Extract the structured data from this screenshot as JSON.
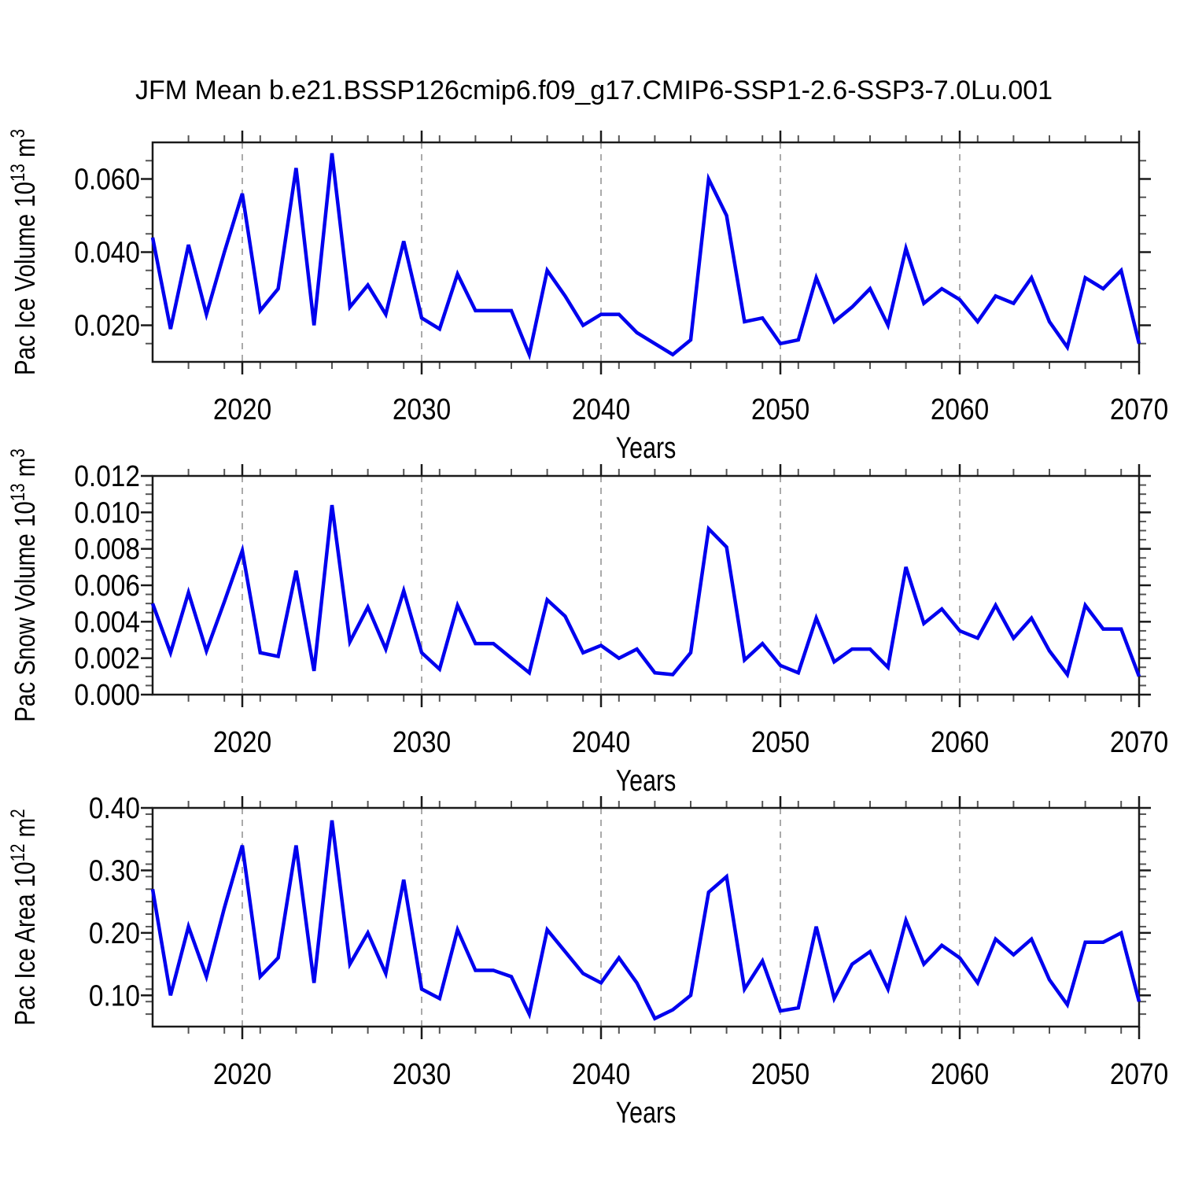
{
  "title": "JFM Mean b.e21.BSSP126cmip6.f09_g17.CMIP6-SSP1-2.6-SSP3-7.0Lu.001",
  "line_color": "#0000ee",
  "grid_color": "#aaaaaa",
  "axis_color": "#1a1a1a",
  "x_axis": {
    "label": "Years",
    "range": [
      2015,
      2070
    ],
    "tick_values": [
      2020,
      2030,
      2040,
      2050,
      2060,
      2070
    ],
    "tick_labels": [
      "2020",
      "2030",
      "2040",
      "2050",
      "2060",
      "2070"
    ],
    "minor_step": 2,
    "grid_years": [
      2020,
      2030,
      2040,
      2050,
      2060
    ]
  },
  "chart_data": [
    {
      "type": "line",
      "name": "pac-ice-volume",
      "ylabel": "Pac Ice Volume 10^13 m^3",
      "ylabel_parts": [
        {
          "t": "Pac Ice Volume 10"
        },
        {
          "t": "13",
          "sup": true
        },
        {
          "t": " m"
        },
        {
          "t": "3",
          "sup": true
        }
      ],
      "ylim": [
        0.01,
        0.07
      ],
      "ytick_values": [
        0.02,
        0.04,
        0.06
      ],
      "ytick_labels": [
        "0.020",
        "0.040",
        "0.060"
      ],
      "y_minor_step": 0.005,
      "x": [
        2015,
        2016,
        2017,
        2018,
        2019,
        2020,
        2021,
        2022,
        2023,
        2024,
        2025,
        2026,
        2027,
        2028,
        2029,
        2030,
        2031,
        2032,
        2033,
        2034,
        2035,
        2036,
        2037,
        2038,
        2039,
        2040,
        2041,
        2042,
        2043,
        2044,
        2045,
        2046,
        2047,
        2048,
        2049,
        2050,
        2051,
        2052,
        2053,
        2054,
        2055,
        2056,
        2057,
        2058,
        2059,
        2060,
        2061,
        2062,
        2063,
        2064,
        2065,
        2066,
        2067,
        2068,
        2069,
        2070
      ],
      "values": [
        0.044,
        0.019,
        0.042,
        0.023,
        0.04,
        0.056,
        0.024,
        0.03,
        0.063,
        0.02,
        0.067,
        0.025,
        0.031,
        0.023,
        0.043,
        0.022,
        0.019,
        0.034,
        0.024,
        0.024,
        0.024,
        0.012,
        0.035,
        0.028,
        0.02,
        0.023,
        0.023,
        0.018,
        0.015,
        0.012,
        0.016,
        0.06,
        0.05,
        0.021,
        0.022,
        0.015,
        0.016,
        0.033,
        0.021,
        0.025,
        0.03,
        0.02,
        0.041,
        0.026,
        0.03,
        0.027,
        0.021,
        0.028,
        0.026,
        0.033,
        0.021,
        0.014,
        0.033,
        0.03,
        0.035,
        0.015
      ]
    },
    {
      "type": "line",
      "name": "pac-snow-volume",
      "ylabel": "Pac Snow Volume 10^13 m^3",
      "ylabel_parts": [
        {
          "t": "Pac Snow Volume 10"
        },
        {
          "t": "13",
          "sup": true
        },
        {
          "t": " m"
        },
        {
          "t": "3",
          "sup": true
        }
      ],
      "ylim": [
        0.0,
        0.012
      ],
      "ytick_values": [
        0.0,
        0.002,
        0.004,
        0.006,
        0.008,
        0.01,
        0.012
      ],
      "ytick_labels": [
        "0.000",
        "0.002",
        "0.004",
        "0.006",
        "0.008",
        "0.010",
        "0.012"
      ],
      "y_minor_step": 0.0005,
      "x": [
        2015,
        2016,
        2017,
        2018,
        2019,
        2020,
        2021,
        2022,
        2023,
        2024,
        2025,
        2026,
        2027,
        2028,
        2029,
        2030,
        2031,
        2032,
        2033,
        2034,
        2035,
        2036,
        2037,
        2038,
        2039,
        2040,
        2041,
        2042,
        2043,
        2044,
        2045,
        2046,
        2047,
        2048,
        2049,
        2050,
        2051,
        2052,
        2053,
        2054,
        2055,
        2056,
        2057,
        2058,
        2059,
        2060,
        2061,
        2062,
        2063,
        2064,
        2065,
        2066,
        2067,
        2068,
        2069,
        2070
      ],
      "values": [
        0.005,
        0.0023,
        0.0056,
        0.0024,
        0.0051,
        0.0079,
        0.0023,
        0.0021,
        0.0068,
        0.0013,
        0.0104,
        0.0029,
        0.0048,
        0.0025,
        0.0057,
        0.0023,
        0.0014,
        0.0049,
        0.0028,
        0.0028,
        0.002,
        0.0012,
        0.0052,
        0.0043,
        0.0023,
        0.0027,
        0.002,
        0.0025,
        0.0012,
        0.0011,
        0.0023,
        0.0091,
        0.0081,
        0.0019,
        0.0028,
        0.0016,
        0.0012,
        0.0042,
        0.0018,
        0.0025,
        0.0025,
        0.0015,
        0.007,
        0.0039,
        0.0047,
        0.0035,
        0.0031,
        0.0049,
        0.0031,
        0.0042,
        0.0024,
        0.0011,
        0.0049,
        0.0036,
        0.0036,
        0.001
      ]
    },
    {
      "type": "line",
      "name": "pac-ice-area",
      "ylabel": "Pac Ice Area 10^12 m^2",
      "ylabel_parts": [
        {
          "t": "Pac Ice Area 10"
        },
        {
          "t": "12",
          "sup": true
        },
        {
          "t": " m"
        },
        {
          "t": "2",
          "sup": true
        }
      ],
      "ylim": [
        0.05,
        0.4
      ],
      "ytick_values": [
        0.1,
        0.2,
        0.3,
        0.4
      ],
      "ytick_labels": [
        "0.10",
        "0.20",
        "0.30",
        "0.40"
      ],
      "y_minor_step": 0.02,
      "x": [
        2015,
        2016,
        2017,
        2018,
        2019,
        2020,
        2021,
        2022,
        2023,
        2024,
        2025,
        2026,
        2027,
        2028,
        2029,
        2030,
        2031,
        2032,
        2033,
        2034,
        2035,
        2036,
        2037,
        2038,
        2039,
        2040,
        2041,
        2042,
        2043,
        2044,
        2045,
        2046,
        2047,
        2048,
        2049,
        2050,
        2051,
        2052,
        2053,
        2054,
        2055,
        2056,
        2057,
        2058,
        2059,
        2060,
        2061,
        2062,
        2063,
        2064,
        2065,
        2066,
        2067,
        2068,
        2069,
        2070
      ],
      "values": [
        0.27,
        0.1,
        0.21,
        0.13,
        0.24,
        0.34,
        0.13,
        0.16,
        0.34,
        0.12,
        0.38,
        0.15,
        0.2,
        0.135,
        0.285,
        0.11,
        0.095,
        0.205,
        0.14,
        0.14,
        0.13,
        0.07,
        0.205,
        0.17,
        0.135,
        0.12,
        0.16,
        0.12,
        0.063,
        0.077,
        0.1,
        0.265,
        0.29,
        0.11,
        0.155,
        0.075,
        0.08,
        0.21,
        0.095,
        0.15,
        0.17,
        0.11,
        0.22,
        0.15,
        0.18,
        0.16,
        0.12,
        0.19,
        0.165,
        0.19,
        0.125,
        0.085,
        0.185,
        0.185,
        0.2,
        0.09
      ]
    }
  ]
}
